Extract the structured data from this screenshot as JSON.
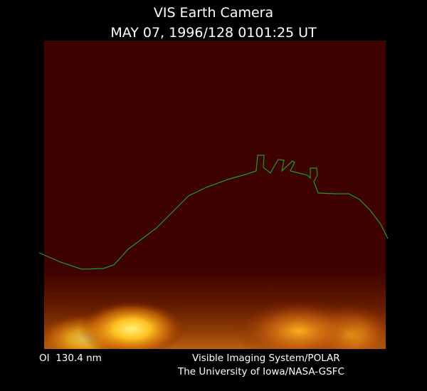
{
  "header": {
    "title": "VIS Earth Camera",
    "subtitle": "MAY 07, 1996/128 0101:25 UT"
  },
  "footer": {
    "filter": "OI  130.4 nm",
    "instrument": "Visible Imaging System/POLAR",
    "institution": "The University of Iowa/NASA-GSFC"
  }
}
